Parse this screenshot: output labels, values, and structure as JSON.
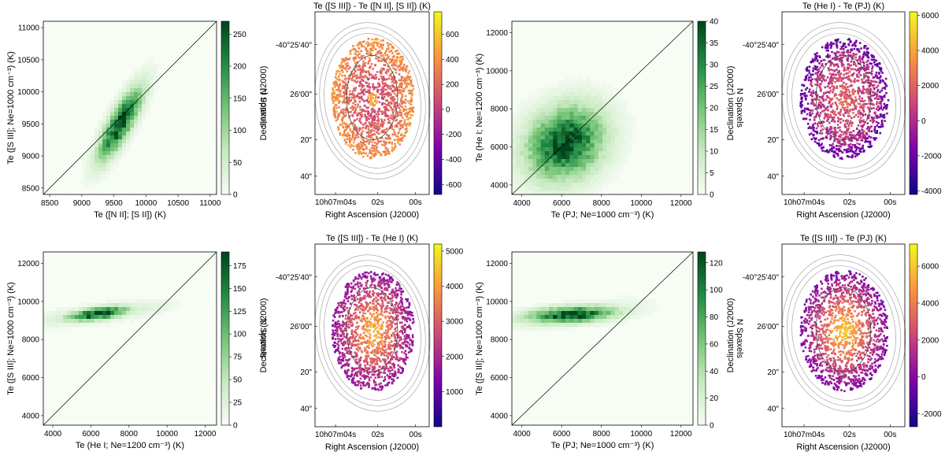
{
  "figure_layout": "2 rows x 4 panels",
  "colors": {
    "density_light": "#f7fcf5",
    "density_dark": "#00441b",
    "plasma_low": "#0d0887",
    "plasma_mid": "#cc4778",
    "plasma_high": "#f0f921",
    "contour": "#999999",
    "contour_inner": "#444444"
  },
  "chart_data": [
    {
      "id": "p1",
      "type": "heatmap",
      "xlabel": "Te ([N II]; [S II]) (K)",
      "ylabel": "Te ([S III]; Ne=1000 cm⁻³) (K)",
      "xlim": [
        8400,
        11100
      ],
      "ylim": [
        8400,
        11100
      ],
      "xticks": [
        8500,
        9000,
        9500,
        10000,
        10500,
        11000
      ],
      "yticks": [
        8500,
        9000,
        9500,
        10000,
        10500,
        11000
      ],
      "one_to_one_line": true,
      "colorbar": {
        "label": "N Spaxels",
        "range": [
          0,
          270
        ],
        "ticks": [
          0,
          50,
          100,
          150,
          200,
          250
        ]
      },
      "blob": {
        "cx": 9600,
        "cy": 9500,
        "sx": 230,
        "sy": 380,
        "rho": 0.82,
        "peak": 270
      }
    },
    {
      "id": "p2",
      "type": "image_map",
      "title": "Te ([S III]) - Te ([N II], [S II]) (K)",
      "xlabel": "Right Ascension (J2000)",
      "ylabel": "Declination (J2000)",
      "xticks": [
        "10h07m04s",
        "02s",
        "00s"
      ],
      "yticks": [
        "-40°25'40\"",
        "26'00\"",
        "20\"",
        "40\""
      ],
      "colorbar": {
        "range": [
          -680,
          780
        ],
        "ticks": [
          -600,
          -400,
          -200,
          0,
          200,
          400,
          600
        ]
      }
    },
    {
      "id": "p3",
      "type": "heatmap",
      "xlabel": "Te (PJ; Ne=1000 cm⁻³) (K)",
      "ylabel": "Te (He I; Ne=1200 cm⁻³) (K)",
      "xlim": [
        3500,
        12600
      ],
      "ylim": [
        3500,
        12600
      ],
      "xticks": [
        4000,
        6000,
        8000,
        10000,
        12000
      ],
      "yticks": [
        4000,
        6000,
        8000,
        10000,
        12000
      ],
      "one_to_one_line": true,
      "colorbar": {
        "label": "N Spaxels",
        "range": [
          0,
          40
        ],
        "ticks": [
          0,
          5,
          10,
          15,
          20,
          25,
          30,
          35,
          40
        ]
      },
      "blob": {
        "cx": 6200,
        "cy": 6200,
        "sx": 1300,
        "sy": 1300,
        "rho": 0.2,
        "peak": 40
      }
    },
    {
      "id": "p4",
      "type": "image_map",
      "title": "Te (He I) - Te (PJ) (K)",
      "xlabel": "Right Ascension (J2000)",
      "ylabel": "Declination (J2000)",
      "xticks": [
        "10h07m04s",
        "02s",
        "00s"
      ],
      "yticks": [
        "-40°25'40\"",
        "26'00\"",
        "20\"",
        "40\""
      ],
      "colorbar": {
        "range": [
          -4200,
          6200
        ],
        "ticks": [
          -4000,
          -2000,
          0,
          2000,
          4000,
          6000
        ]
      }
    },
    {
      "id": "p5",
      "type": "heatmap",
      "xlabel": "Te (He I; Ne=1200 cm⁻³) (K)",
      "ylabel": "Te ([S III]; Ne=1000 cm⁻³) (K)",
      "xlim": [
        3500,
        12600
      ],
      "ylim": [
        3500,
        12600
      ],
      "xticks": [
        4000,
        6000,
        8000,
        10000,
        12000
      ],
      "yticks": [
        4000,
        6000,
        8000,
        10000,
        12000
      ],
      "one_to_one_line": true,
      "colorbar": {
        "label": "N Spaxels",
        "range": [
          0,
          190
        ],
        "ticks": [
          0,
          25,
          50,
          75,
          100,
          125,
          150,
          175
        ]
      },
      "blob": {
        "cx": 6400,
        "cy": 9350,
        "sx": 1100,
        "sy": 260,
        "rho": 0.55,
        "peak": 190
      }
    },
    {
      "id": "p6",
      "type": "image_map",
      "title": "Te ([S III]) - Te (He I) (K)",
      "xlabel": "Right Ascension (J2000)",
      "ylabel": "Declination (J2000)",
      "xticks": [
        "10h07m04s",
        "02s",
        "00s"
      ],
      "yticks": [
        "-40°25'40\"",
        "26'00\"",
        "20\"",
        "40\""
      ],
      "colorbar": {
        "range": [
          0,
          5200
        ],
        "ticks": [
          1000,
          2000,
          3000,
          4000,
          5000
        ]
      }
    },
    {
      "id": "p7",
      "type": "heatmap",
      "xlabel": "Te (PJ; Ne=1000 cm⁻³) (K)",
      "ylabel": "Te ([S III]; Ne=1000 cm⁻³) (K)",
      "xlim": [
        3500,
        12600
      ],
      "ylim": [
        3500,
        12600
      ],
      "xticks": [
        4000,
        6000,
        8000,
        10000,
        12000
      ],
      "yticks": [
        4000,
        6000,
        8000,
        10000,
        12000
      ],
      "one_to_one_line": true,
      "colorbar": {
        "label": "N Spaxels",
        "range": [
          0,
          128
        ],
        "ticks": [
          0,
          20,
          40,
          60,
          80,
          100,
          120
        ]
      },
      "blob": {
        "cx": 6500,
        "cy": 9300,
        "sx": 1500,
        "sy": 300,
        "rho": 0.3,
        "peak": 128
      }
    },
    {
      "id": "p8",
      "type": "image_map",
      "title": "Te ([S III]) - Te (PJ) (K)",
      "xlabel": "Right Ascension (J2000)",
      "ylabel": "Declination (J2000)",
      "xticks": [
        "10h07m04s",
        "02s",
        "00s"
      ],
      "yticks": [
        "-40°25'40\"",
        "26'00\"",
        "20\"",
        "40\""
      ],
      "colorbar": {
        "range": [
          -2700,
          7200
        ],
        "ticks": [
          -2000,
          0,
          2000,
          4000,
          6000
        ]
      }
    }
  ]
}
